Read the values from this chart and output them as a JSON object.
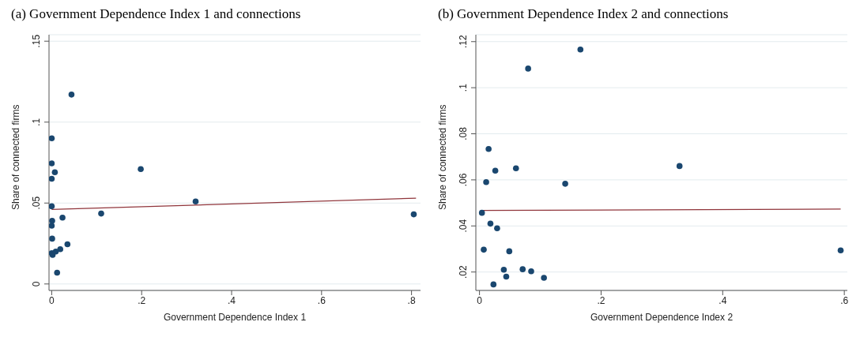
{
  "chart_data": [
    {
      "type": "scatter",
      "title": "(a) Government Dependence Index 1 and connections",
      "xlabel": "Government Dependence Index 1",
      "ylabel": "Share of connected firms",
      "xlim": [
        -0.006,
        0.82
      ],
      "xticks": [
        {
          "value": 0,
          "label": "0"
        },
        {
          "value": 0.2,
          "label": ".2"
        },
        {
          "value": 0.4,
          "label": ".4"
        },
        {
          "value": 0.6,
          "label": ".6"
        },
        {
          "value": 0.8,
          "label": ".8"
        }
      ],
      "ylim": [
        -0.004,
        0.154
      ],
      "yticks": [
        {
          "value": 0,
          "label": "0"
        },
        {
          "value": 0.05,
          "label": ".05"
        },
        {
          "value": 0.1,
          "label": ".1"
        },
        {
          "value": 0.15,
          "label": ".15"
        }
      ],
      "grid": "y",
      "series": [
        {
          "marker": "circle",
          "color": "#1a476f",
          "x": [
            0,
            0,
            0.007,
            0,
            0,
            0.001,
            0,
            0.001,
            0,
            0.002,
            0.009,
            0.019,
            0.024,
            0.035,
            0.012,
            0.044,
            0.198,
            0.11,
            0.32,
            0.805
          ],
          "values": [
            0.09,
            0.0745,
            0.069,
            0.065,
            0.048,
            0.039,
            0.036,
            0.028,
            0.019,
            0.018,
            0.02,
            0.0215,
            0.041,
            0.0245,
            0.007,
            0.117,
            0.071,
            0.0435,
            0.051,
            0.043
          ]
        },
        {
          "type": "line",
          "color": "#90353b",
          "x": [
            0,
            0.81
          ],
          "values": [
            0.046,
            0.053
          ]
        }
      ]
    },
    {
      "type": "scatter",
      "title": "(b) Government Dependence Index 2 and connections",
      "xlabel": "Government Dependence Index 2",
      "ylabel": "Share of connected firms",
      "xlim": [
        -0.006,
        0.605
      ],
      "xticks": [
        {
          "value": 0,
          "label": "0"
        },
        {
          "value": 0.2,
          "label": ".2"
        },
        {
          "value": 0.4,
          "label": ".4"
        },
        {
          "value": 0.6,
          "label": ".6"
        }
      ],
      "ylim": [
        0.012,
        0.123
      ],
      "yticks": [
        {
          "value": 0.02,
          "label": ".02"
        },
        {
          "value": 0.04,
          "label": ".04"
        },
        {
          "value": 0.06,
          "label": ".06"
        },
        {
          "value": 0.08,
          "label": ".08"
        },
        {
          "value": 0.1,
          "label": ".1"
        },
        {
          "value": 0.12,
          "label": ".12"
        }
      ],
      "grid": "y",
      "series": [
        {
          "marker": "circle",
          "color": "#1a476f",
          "x": [
            0.166,
            0.08,
            0.015,
            0.026,
            0.06,
            0.011,
            0.141,
            0.004,
            0.018,
            0.029,
            0.007,
            0.049,
            0.04,
            0.071,
            0.085,
            0.044,
            0.106,
            0.023,
            0.329,
            0.594
          ],
          "values": [
            0.1166,
            0.1083,
            0.0734,
            0.064,
            0.065,
            0.059,
            0.0583,
            0.0457,
            0.041,
            0.039,
            0.0297,
            0.029,
            0.021,
            0.0212,
            0.0203,
            0.018,
            0.0175,
            0.0146,
            0.066,
            0.0294
          ]
        },
        {
          "type": "line",
          "color": "#90353b",
          "x": [
            0.004,
            0.594
          ],
          "values": [
            0.0467,
            0.0473
          ]
        }
      ]
    }
  ]
}
